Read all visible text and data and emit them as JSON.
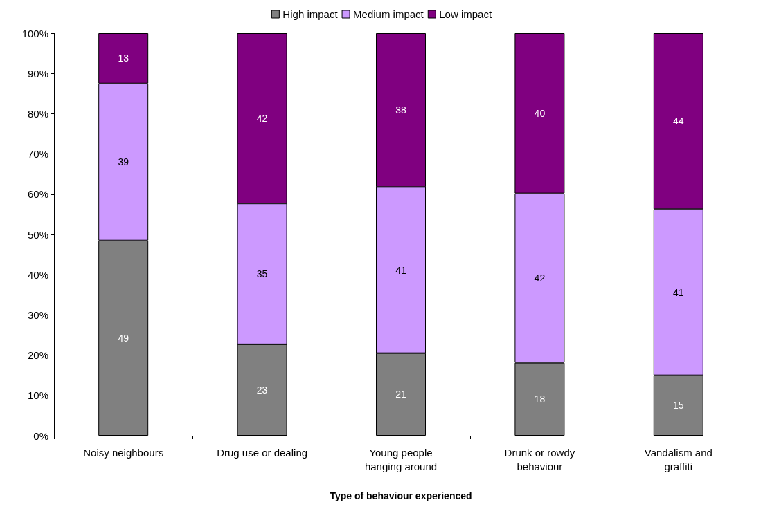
{
  "chart_data": {
    "type": "bar",
    "stacked": true,
    "xlabel": "Type of behaviour experienced",
    "categories": [
      "Noisy neighbours",
      "Drug use or dealing",
      "Young people\nhanging around",
      "Drunk or rowdy\nbehaviour",
      "Vandalism and\ngraffiti"
    ],
    "series": [
      {
        "name": "High impact",
        "color": "#808080",
        "values": [
          48.5,
          22.7,
          20.5,
          18.1,
          15
        ],
        "value_labels": [
          "49",
          "23",
          "21",
          "18",
          "15"
        ]
      },
      {
        "name": "Medium impact",
        "color": "#cc99ff",
        "values": [
          39,
          35,
          41.3,
          42.1,
          41.3
        ],
        "value_labels": [
          "39",
          "35",
          "41",
          "42",
          "41"
        ]
      },
      {
        "name": "Low impact",
        "color": "#800080",
        "values": [
          12.5,
          42.3,
          38.2,
          39.8,
          43.7
        ],
        "value_labels": [
          "13",
          "42",
          "38",
          "40",
          "44"
        ]
      }
    ],
    "ylim": [
      0,
      100
    ],
    "yticks": [
      {
        "value": 0,
        "label": "0%"
      },
      {
        "value": 10,
        "label": "10%"
      },
      {
        "value": 20,
        "label": "20%"
      },
      {
        "value": 30,
        "label": "30%"
      },
      {
        "value": 40,
        "label": "40%"
      },
      {
        "value": 50,
        "label": "50%"
      },
      {
        "value": 60,
        "label": "60%"
      },
      {
        "value": 70,
        "label": "70%"
      },
      {
        "value": 80,
        "label": "80%"
      },
      {
        "value": 90,
        "label": "90%"
      },
      {
        "value": 100,
        "label": "100%"
      }
    ],
    "grid": false,
    "legend": "top"
  }
}
